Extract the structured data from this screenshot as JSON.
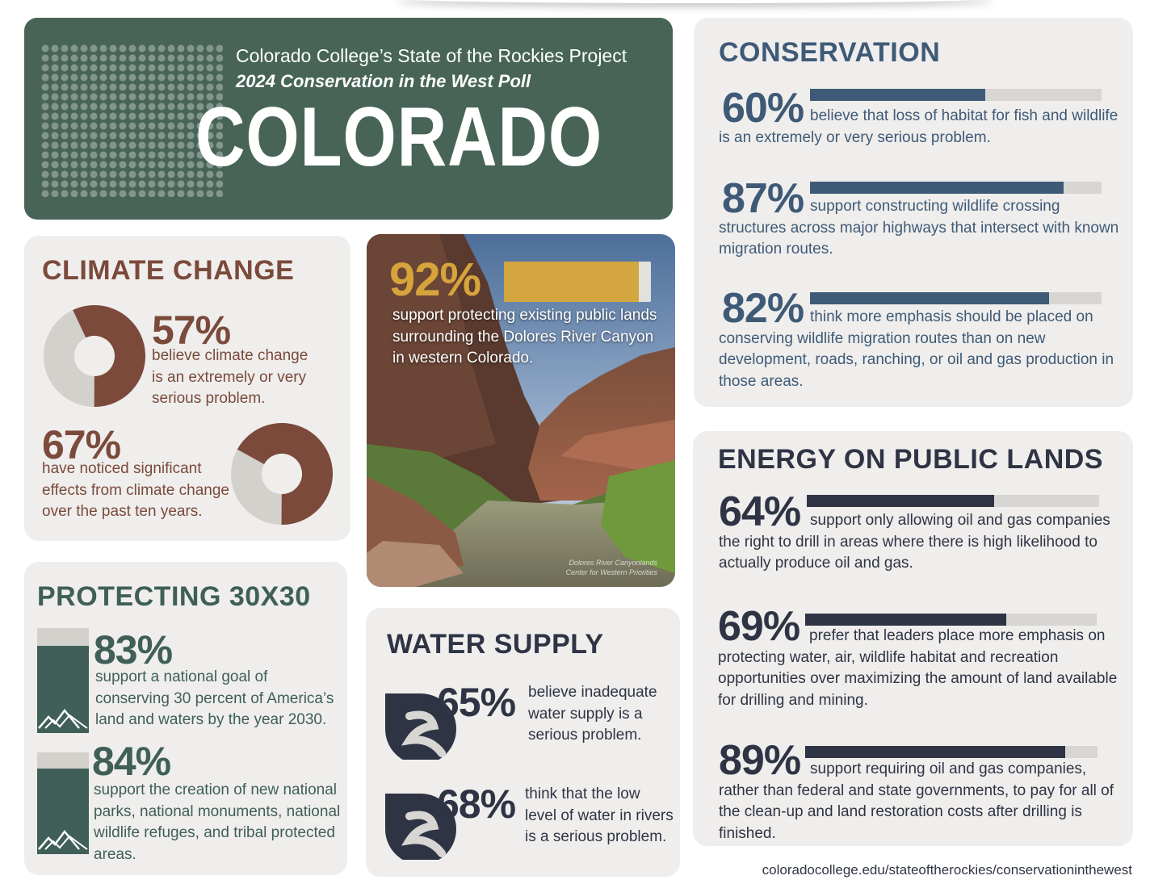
{
  "header": {
    "subtitle": "Colorado College’s State of the Rockies Project",
    "poll_name": "2024 Conservation in the West Poll",
    "state": "COLORADO"
  },
  "climate": {
    "title": "CLIMATE CHANGE",
    "items": [
      {
        "percent": "57%",
        "value": 57,
        "text": "believe climate change is an extremely or very serious problem."
      },
      {
        "percent": "67%",
        "value": 67,
        "text": "have noticed significant effects from climate change over the past ten years."
      }
    ]
  },
  "protecting": {
    "title": "PROTECTING 30X30",
    "items": [
      {
        "percent": "83%",
        "value": 83,
        "text": "support a national goal of conserving 30 percent of America’s land and waters by the year 2030."
      },
      {
        "percent": "84%",
        "value": 84,
        "text": "support the creation of new national parks, national monuments, national wildlife refuges, and tribal protected areas."
      }
    ]
  },
  "photo_stat": {
    "percent": "92%",
    "value": 92,
    "text": "support protecting existing public lands surrounding the Dolores River Canyon in western Colorado.",
    "credit_line1": "Dolores River Canyonlands",
    "credit_line2": "Center for Western Priorities"
  },
  "water": {
    "title": "WATER SUPPLY",
    "items": [
      {
        "percent": "65%",
        "value": 65,
        "text": "believe inadequate water supply is a serious problem."
      },
      {
        "percent": "68%",
        "value": 68,
        "text": "think that the low level of water in rivers is a serious problem."
      }
    ]
  },
  "conservation": {
    "title": "CONSERVATION",
    "items": [
      {
        "percent": "60%",
        "value": 60,
        "text": "believe that loss of habitat for fish and wildlife is an extremely or very serious problem."
      },
      {
        "percent": "87%",
        "value": 87,
        "text": "support constructing wildlife crossing structures across major highways that intersect with known migration routes."
      },
      {
        "percent": "82%",
        "value": 82,
        "text": "think more emphasis should be placed on conserving wildlife migration routes than on new development, roads, ranching, or oil and gas production in those areas."
      }
    ]
  },
  "energy": {
    "title": "ENERGY ON PUBLIC LANDS",
    "items": [
      {
        "percent": "64%",
        "value": 64,
        "text": "support only allowing oil and gas companies the right to drill in areas where there is high likelihood to actually produce oil and gas."
      },
      {
        "percent": "69%",
        "value": 69,
        "text": "prefer that leaders place more emphasis on protecting water, air, wildlife habitat and recreation opportunities over maximizing the amount of land available for drilling and mining."
      },
      {
        "percent": "89%",
        "value": 89,
        "text": "support requiring oil and gas companies, rather than federal and state governments, to pay for all of the clean-up and land restoration costs after drilling is finished."
      }
    ]
  },
  "footer": {
    "url": "coloradocollege.edu/stateoftherockies/conservationinthewest"
  },
  "colors": {
    "header_green": "#476457",
    "climate_brown": "#7b4a3b",
    "protect_green": "#3f5f58",
    "photo_gold": "#d3a640",
    "water_navy": "#2f3445",
    "conservation_blue": "#3f5a77",
    "energy_navy": "#2f3445",
    "track_gray": "#d7d6d2"
  }
}
